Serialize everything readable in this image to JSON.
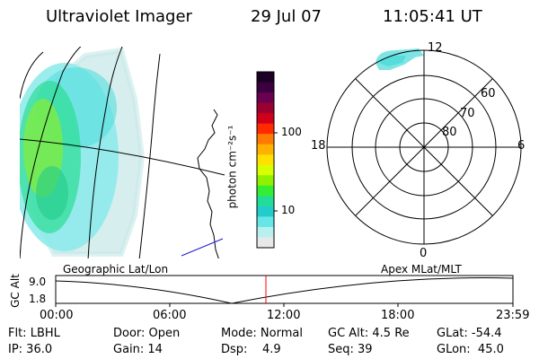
{
  "header": {
    "instrument": "Ultraviolet Imager",
    "date": "29 Jul 07",
    "time": "11:05:41 UT"
  },
  "colorbar": {
    "unit": "photon cm⁻²s⁻¹",
    "ticks": [
      "100",
      "10"
    ],
    "colors": [
      "#1a0022",
      "#3a0040",
      "#6a0050",
      "#9a0030",
      "#d0001a",
      "#ff2a00",
      "#ff7a00",
      "#ffb000",
      "#ffe000",
      "#d8ff00",
      "#8ff000",
      "#33ee33",
      "#22dd99",
      "#22cccc",
      "#66e6e6",
      "#b8f0f0",
      "#e8e8e8"
    ]
  },
  "polar": {
    "mlt_labels": {
      "top": "12",
      "left": "18",
      "right": "6",
      "bottom": "0"
    },
    "lat_labels": [
      "60",
      "70",
      "80"
    ]
  },
  "timeline": {
    "left_label": "Geographic Lat/Lon",
    "right_label": "Apex  MLat/MLT",
    "axis_title": "GC Alt",
    "y_ticks": [
      "9.0",
      "1.8"
    ],
    "x_ticks": [
      "00:00",
      "06:00",
      "12:00",
      "18:00",
      "23:59"
    ],
    "marker_color": "#ff0000"
  },
  "status": {
    "flt": "Flt: LBHL",
    "ip": "IP: 36.0",
    "door": "Door: Open",
    "gain": "Gain: 14",
    "mode": "Mode: Normal",
    "dsp": "Dsp:    4.9",
    "gcalt": "GC Alt: 4.5 Re",
    "seq": "Seq: 39",
    "glat": "GLat: -54.4",
    "glon": "GLon:  45.0"
  }
}
